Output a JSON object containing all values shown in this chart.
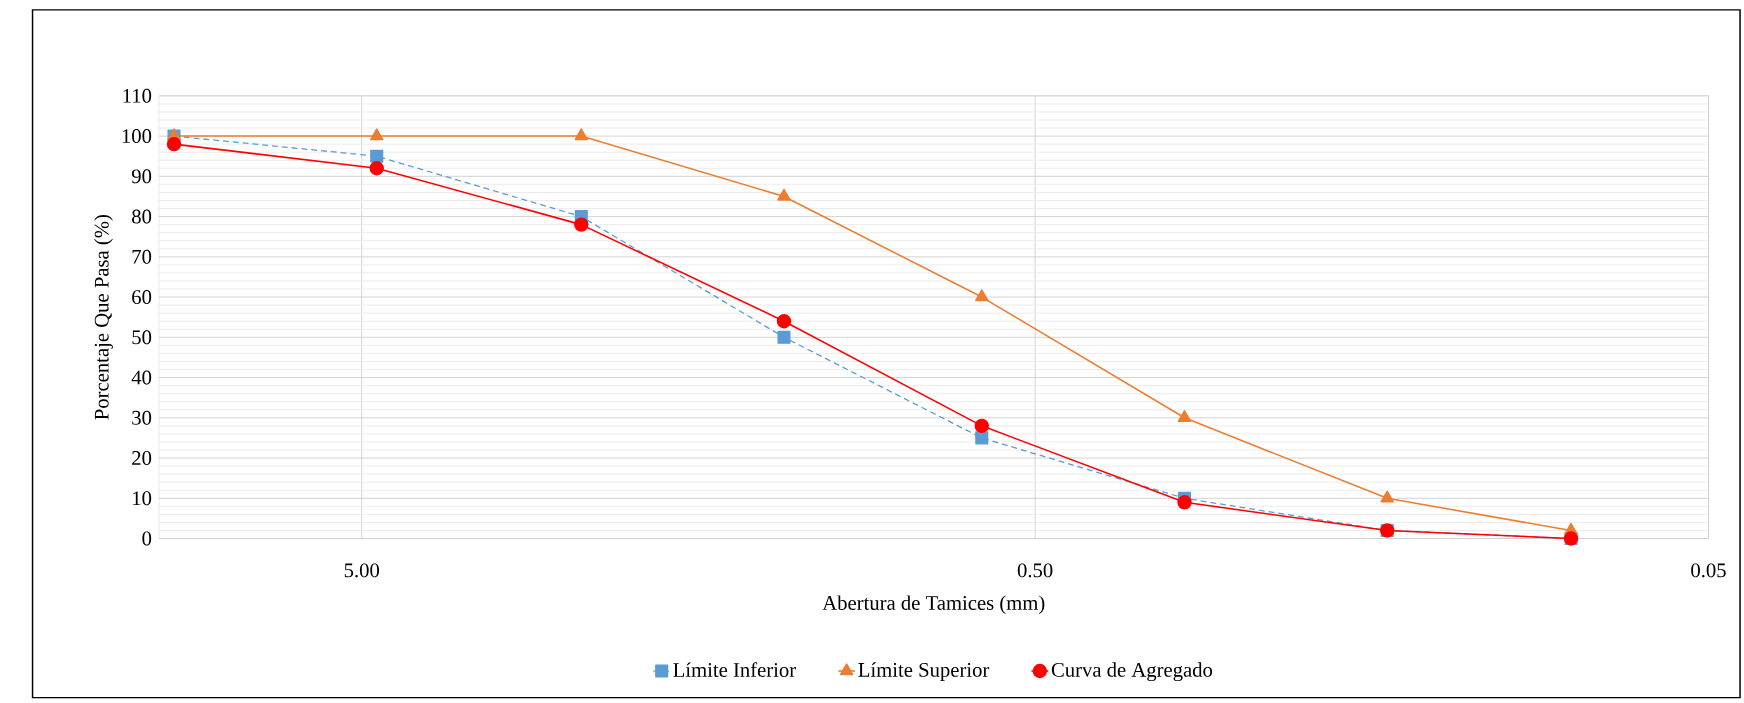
{
  "chart_data": {
    "type": "line",
    "xlabel": "Abertura de Tamices (mm)",
    "ylabel": "Porcentaje Que Pasa (%)",
    "x": [
      9.5,
      4.75,
      2.36,
      1.18,
      0.6,
      0.3,
      0.15,
      0.08
    ],
    "series": [
      {
        "name": "Límite Inferior",
        "color": "#5b9bd5",
        "marker": "square",
        "line_style": "dashed",
        "values": [
          100,
          95,
          80,
          50,
          25,
          10,
          2,
          0
        ]
      },
      {
        "name": "Límite Superior",
        "color": "#ed7d31",
        "marker": "triangle",
        "line_style": "solid",
        "values": [
          100,
          100,
          100,
          85,
          60,
          30,
          10,
          2
        ]
      },
      {
        "name": "Curva de Agregado",
        "color": "#ff0000",
        "marker": "circle",
        "line_style": "solid",
        "values": [
          98,
          92,
          78,
          54,
          28,
          9,
          2,
          0
        ]
      }
    ],
    "log": "x",
    "xlim": [
      10,
      0.05
    ],
    "xticks": [
      {
        "value": 5,
        "label": "5.00"
      },
      {
        "value": 0.5,
        "label": "0.50"
      },
      {
        "value": 0.05,
        "label": "0.05"
      }
    ],
    "ylim": [
      0,
      110
    ],
    "yticks": [
      0,
      10,
      20,
      30,
      40,
      50,
      60,
      70,
      80,
      90,
      100,
      110
    ],
    "grid": true,
    "legend": "bottom"
  }
}
